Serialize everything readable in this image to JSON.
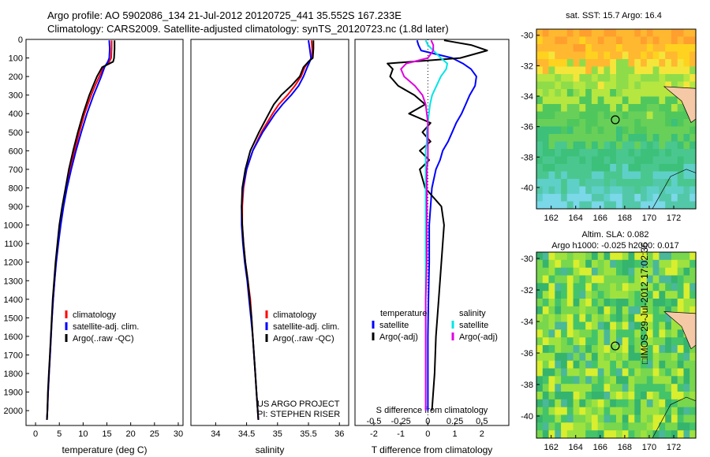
{
  "header": {
    "line1": "Argo profile: AO 5902086_134 21-Jul-2012 20120725_441 35.552S 167.233E",
    "line2": "Climatology: CARS2009. Satellite-adjusted climatology: synTS_20120723.nc (1.8d later)"
  },
  "colors": {
    "climatology": "#ff0000",
    "satellite": "#0000ff",
    "argo": "#000000",
    "satellite_salinity": "#00e5e5",
    "argo_salinity": "#e000e0"
  },
  "chart_data": [
    {
      "id": "temperature",
      "type": "line",
      "xlabel": "temperature (deg C)",
      "ylabel": "",
      "xlim": [
        -2,
        31
      ],
      "ylim": [
        2080,
        0
      ],
      "xticks": [
        0,
        5,
        10,
        15,
        20,
        25,
        30
      ],
      "yticks": [
        0,
        100,
        200,
        300,
        400,
        500,
        600,
        700,
        800,
        900,
        1000,
        1100,
        1200,
        1300,
        1400,
        1500,
        1600,
        1700,
        1800,
        1900,
        2000
      ],
      "depth": [
        5,
        50,
        100,
        120,
        150,
        200,
        250,
        300,
        400,
        500,
        600,
        700,
        800,
        900,
        1000,
        1100,
        1200,
        1300,
        1400,
        1500,
        1600,
        1700,
        1800,
        1900,
        2000,
        2050
      ],
      "series": [
        {
          "name": "climatology",
          "color": "#ff0000",
          "values": [
            16.0,
            16.0,
            15.9,
            15.5,
            14.3,
            13.4,
            12.5,
            11.7,
            10.3,
            9.2,
            8.2,
            7.3,
            6.5,
            5.8,
            5.2,
            4.7,
            4.3,
            4.0,
            3.7,
            3.45,
            3.25,
            3.05,
            2.85,
            2.65,
            2.5,
            2.4
          ]
        },
        {
          "name": "satellite-adj. clim.",
          "color": "#0000ff",
          "values": [
            15.5,
            15.6,
            15.5,
            15.2,
            14.5,
            13.8,
            13.0,
            12.2,
            10.8,
            9.6,
            8.5,
            7.5,
            6.6,
            5.9,
            5.3,
            4.8,
            4.35,
            4.0,
            3.7,
            3.45,
            3.25,
            3.05,
            2.85,
            2.65,
            2.5,
            2.4
          ]
        },
        {
          "name": "Argo(..raw -QC)",
          "color": "#000000",
          "values": [
            16.6,
            16.6,
            16.5,
            16.3,
            14.0,
            12.9,
            12.1,
            11.3,
            10.0,
            8.9,
            7.9,
            7.0,
            6.3,
            5.6,
            5.0,
            4.6,
            4.2,
            3.9,
            3.6,
            3.4,
            3.2,
            3.0,
            2.8,
            2.6,
            2.5,
            2.4
          ]
        }
      ],
      "legend_labels": [
        "climatology",
        "satellite-adj. clim.",
        "Argo(..raw -QC)"
      ]
    },
    {
      "id": "salinity",
      "type": "line",
      "xlabel": "salinity",
      "ylabel": "",
      "xlim": [
        33.6,
        36.15
      ],
      "ylim": [
        2080,
        0
      ],
      "xticks": [
        34,
        34.5,
        35,
        35.5,
        36
      ],
      "depth": [
        5,
        50,
        100,
        120,
        150,
        200,
        250,
        300,
        350,
        400,
        500,
        600,
        700,
        800,
        900,
        1000,
        1100,
        1200,
        1300,
        1400,
        1500,
        1600,
        1700,
        1800,
        1900,
        2000,
        2050
      ],
      "series": [
        {
          "name": "climatology",
          "color": "#ff0000",
          "values": [
            35.55,
            35.56,
            35.56,
            35.5,
            35.44,
            35.38,
            35.28,
            35.16,
            35.02,
            34.92,
            34.74,
            34.6,
            34.5,
            34.45,
            34.43,
            34.43,
            34.45,
            34.48,
            34.52,
            34.56,
            34.58,
            34.6,
            34.62,
            34.64,
            34.66,
            34.68,
            34.69
          ]
        },
        {
          "name": "satellite-adj. clim.",
          "color": "#0000ff",
          "values": [
            35.5,
            35.52,
            35.54,
            35.52,
            35.48,
            35.42,
            35.34,
            35.22,
            35.08,
            34.96,
            34.76,
            34.6,
            34.5,
            34.44,
            34.42,
            34.42,
            34.44,
            34.47,
            34.51,
            34.54,
            34.57,
            34.6,
            34.62,
            34.64,
            34.66,
            34.68,
            34.69
          ]
        },
        {
          "name": "Argo(..raw -QC)",
          "color": "#000000",
          "values": [
            35.58,
            35.58,
            35.57,
            35.5,
            35.42,
            35.36,
            35.22,
            35.06,
            34.94,
            34.86,
            34.7,
            34.56,
            34.48,
            34.43,
            34.42,
            34.43,
            34.45,
            34.48,
            34.52,
            34.55,
            34.58,
            34.6,
            34.62,
            34.64,
            34.66,
            34.68,
            34.69
          ]
        }
      ],
      "legend_labels": [
        "climatology",
        "satellite-adj. clim.",
        "Argo(..raw -QC)"
      ],
      "note_lines": [
        "US ARGO PROJECT",
        "PI: STEPHEN RISER"
      ]
    },
    {
      "id": "difference",
      "type": "line",
      "xlabel": "T difference from climatology",
      "top_axis_label": "S difference from climatology",
      "xlim": [
        -2.7,
        3.0
      ],
      "ylim": [
        2080,
        0
      ],
      "xticks": [
        -2,
        -1,
        0,
        1,
        2
      ],
      "top_ticks": [
        -0.5,
        -0.25,
        0,
        0.25,
        0.5
      ],
      "top_tick_labels": [
        "-0.5",
        "-0.25",
        "0",
        "0.25",
        "0.5"
      ],
      "depth": [
        5,
        30,
        60,
        100,
        130,
        160,
        200,
        250,
        300,
        350,
        400,
        450,
        500,
        550,
        600,
        650,
        700,
        800,
        900,
        1000,
        1200,
        1400,
        1600,
        1800,
        2000
      ],
      "series": [
        {
          "name": "satellite (temperature)",
          "color": "#0000ff",
          "values": [
            -0.4,
            -0.35,
            -0.25,
            0.9,
            1.3,
            1.6,
            1.8,
            1.75,
            1.55,
            1.4,
            1.25,
            1.05,
            0.9,
            0.75,
            0.55,
            0.45,
            0.3,
            0.15,
            0.1,
            0.05,
            0.05,
            0.02,
            0.0,
            0.0,
            0.0
          ]
        },
        {
          "name": "Argo(-adj) (temperature)",
          "color": "#000000",
          "values": [
            0.6,
            1.6,
            2.2,
            1.2,
            -1.5,
            -1.3,
            -1.4,
            -1.1,
            -0.5,
            -0.1,
            -0.7,
            0.1,
            -0.2,
            0.1,
            -0.3,
            0.05,
            -0.3,
            -0.1,
            0.5,
            0.6,
            0.5,
            0.4,
            0.3,
            0.25,
            0.15
          ]
        },
        {
          "name": "satellite (salinity)",
          "color": "#00e5e5",
          "values": [
            -0.02,
            0.0,
            0.05,
            0.12,
            0.18,
            0.17,
            0.12,
            0.08,
            0.04,
            0.02,
            0.01,
            0.0,
            -0.01,
            -0.01,
            -0.02,
            -0.02,
            -0.02,
            -0.02,
            -0.02,
            -0.02,
            -0.02,
            -0.02,
            -0.02,
            -0.02,
            -0.02
          ]
        },
        {
          "name": "Argo(-adj) (salinity)",
          "color": "#e000e0",
          "values": [
            0.03,
            0.05,
            0.05,
            0.0,
            -0.2,
            -0.25,
            -0.22,
            -0.12,
            -0.05,
            -0.02,
            -0.01,
            0.0,
            0.0,
            0.0,
            0.0,
            0.0,
            -0.01,
            -0.01,
            -0.01,
            -0.01,
            -0.01,
            -0.02,
            -0.02,
            -0.02,
            -0.02
          ]
        }
      ],
      "legend_temperature": {
        "title": "temperature",
        "items": [
          "satellite",
          "Argo(-adj)"
        ]
      },
      "legend_salinity": {
        "title": "salinity",
        "items": [
          "satellite",
          "Argo(-adj)"
        ]
      }
    },
    {
      "id": "sst_map",
      "type": "heatmap",
      "title": "sat. SST: 15.7  Argo: 16.4",
      "xticks": [
        162,
        164,
        166,
        168,
        170,
        172
      ],
      "yticks": [
        -30,
        -32,
        -34,
        -36,
        -38,
        -40
      ],
      "xlim": [
        160.8,
        173.8
      ],
      "ylim": [
        -41.4,
        -29.6
      ],
      "float_location": [
        167.233,
        -35.552
      ]
    },
    {
      "id": "sla_map",
      "type": "heatmap",
      "title_lines": [
        "Altim. SLA: 0.082",
        "Argo h1000: -0.025 h2000: 0.017"
      ],
      "xticks": [
        162,
        164,
        166,
        168,
        170,
        172
      ],
      "yticks": [
        -30,
        -32,
        -34,
        -36,
        -38,
        -40
      ],
      "xlim": [
        160.8,
        173.8
      ],
      "ylim": [
        -41.4,
        -29.6
      ],
      "float_location": [
        167.233,
        -35.552
      ]
    }
  ],
  "side_stamp": "□IMOS 29-Jul-2012 17:02:36"
}
